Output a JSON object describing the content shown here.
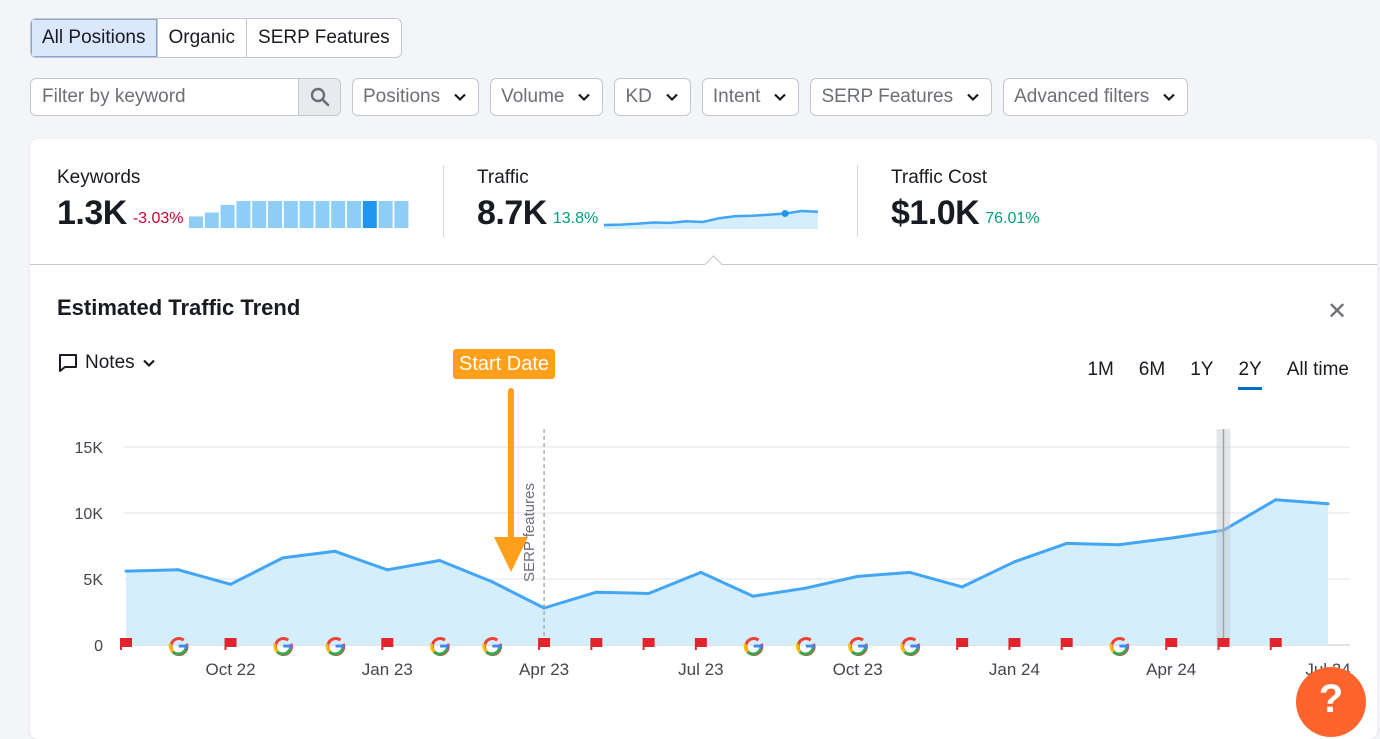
{
  "tabs": [
    "All Positions",
    "Organic",
    "SERP Features"
  ],
  "search": {
    "placeholder": "Filter by keyword"
  },
  "filters": [
    "Positions",
    "Volume",
    "KD",
    "Intent",
    "SERP Features",
    "Advanced filters"
  ],
  "metrics": {
    "keywords": {
      "label": "Keywords",
      "value": "1.3K",
      "delta": "-3.03%",
      "spark": [
        3,
        4,
        6,
        7,
        7,
        7,
        7,
        7,
        7,
        7,
        7,
        7,
        7,
        7
      ]
    },
    "traffic": {
      "label": "Traffic",
      "value": "8.7K",
      "delta": "13.8%",
      "spark": [
        4.9,
        5.0,
        5.2,
        5.5,
        5.4,
        5.8,
        5.6,
        6.5,
        7.0,
        7.1,
        7.3,
        7.6,
        8.2,
        8.0
      ]
    },
    "cost": {
      "label": "Traffic Cost",
      "value": "$1.0K",
      "delta": "76.01%"
    }
  },
  "trend": {
    "title": "Estimated Traffic Trend",
    "notes_label": "Notes",
    "ranges": [
      "1M",
      "6M",
      "1Y",
      "2Y",
      "All time"
    ],
    "active_range": "2Y",
    "start_date_label": "Start Date",
    "serp_label": "SERP features"
  },
  "colors": {
    "line": "#42a5f5",
    "area": "#d4eefc",
    "flag": "#e2242d",
    "accent": "#ff9f1a",
    "help": "#ff642d"
  },
  "help_label": "?",
  "chart_data": {
    "type": "area",
    "x": [
      "2022-08",
      "2022-09",
      "2022-10",
      "2022-11",
      "2022-12",
      "2023-01",
      "2023-02",
      "2023-03",
      "2023-04",
      "2023-05",
      "2023-06",
      "2023-07",
      "2023-08",
      "2023-09",
      "2023-10",
      "2023-11",
      "2023-12",
      "2024-01",
      "2024-02",
      "2024-03",
      "2024-04",
      "2024-05",
      "2024-06",
      "2024-07"
    ],
    "x_tick_labels": [
      "Oct 22",
      "Jan 23",
      "Apr 23",
      "Jul 23",
      "Oct 23",
      "Jan 24",
      "Apr 24",
      "Jul 24"
    ],
    "x_tick_months": [
      "2022-10",
      "2023-01",
      "2023-04",
      "2023-07",
      "2023-10",
      "2024-01",
      "2024-04",
      "2024-07"
    ],
    "series": [
      {
        "values": [
          5600,
          5700,
          4600,
          6600,
          7100,
          5700,
          6400,
          4800,
          2800,
          4000,
          3900,
          5500,
          3700,
          4300,
          5200,
          5500,
          4400,
          6300,
          7700,
          7600,
          8100,
          8700,
          11000,
          10700
        ]
      }
    ],
    "y_tick_labels": [
      "0",
      "5K",
      "10K",
      "15K"
    ],
    "y_ticks": [
      0,
      5000,
      10000,
      15000
    ],
    "ylim": [
      0,
      15000
    ],
    "grid": true,
    "markers": [
      "flag",
      "google",
      "flag",
      "google",
      "google",
      "flag",
      "google",
      "google",
      "flag",
      "flag",
      "flag",
      "flag",
      "google",
      "google",
      "google",
      "google",
      "flag",
      "flag",
      "flag",
      "google",
      "flag",
      "flag",
      "flag"
    ],
    "start_marker_month": "2023-04",
    "highlight_month": "2024-05"
  }
}
